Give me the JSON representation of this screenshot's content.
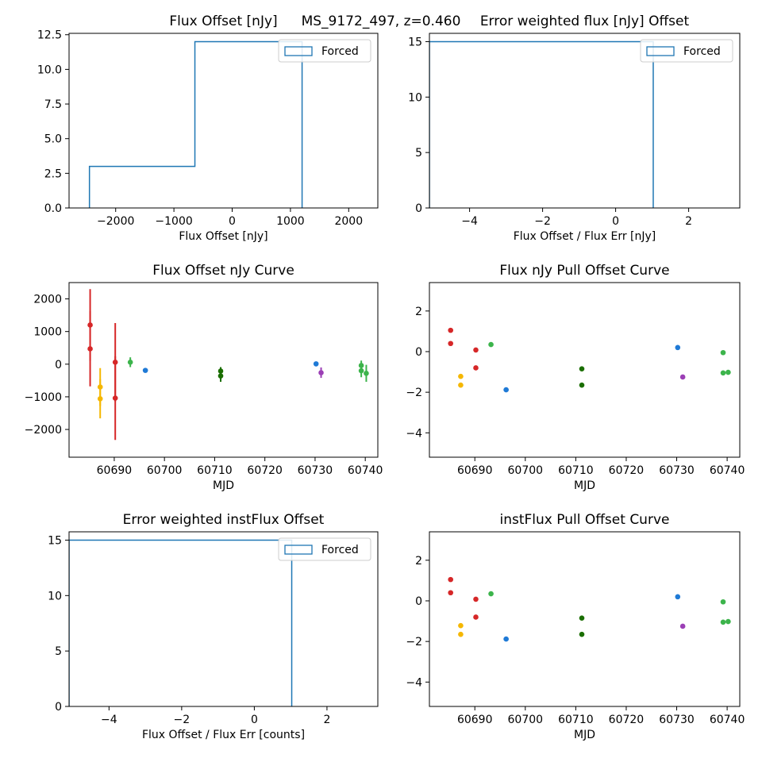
{
  "suptitle": "MS_9172_497, z=0.460",
  "chart_data": [
    {
      "id": "flux_hist",
      "type": "histogram",
      "title": "Flux Offset [nJy]",
      "xlabel": "Flux Offset  [nJy]",
      "ylabel": "",
      "xlim": [
        -2800,
        2500
      ],
      "ylim": [
        0,
        12.6
      ],
      "xticks": [
        -2000,
        -1000,
        0,
        1000,
        2000
      ],
      "xtick_labels": [
        "−2000",
        "−1000",
        "0",
        "1000",
        "2000"
      ],
      "yticks": [
        0,
        2.5,
        5,
        7.5,
        10,
        12.5
      ],
      "ytick_labels": [
        "0.0",
        "2.5",
        "5.0",
        "7.5",
        "10.0",
        "12.5"
      ],
      "bins": [
        [
          -2450,
          -640,
          3
        ],
        [
          -640,
          1200,
          12
        ]
      ],
      "legend": "Forced",
      "legend_position": "upper right",
      "color": "#1f77b4"
    },
    {
      "id": "flux_pull_hist",
      "type": "histogram",
      "title": "Error weighted flux [nJy] Offset",
      "xlabel": "Flux Offset / Flux Err [nJy]",
      "ylabel": "",
      "xlim": [
        -5.1,
        3.4
      ],
      "ylim": [
        0,
        15.75
      ],
      "xticks": [
        -4,
        -2,
        0,
        2
      ],
      "xtick_labels": [
        "−4",
        "−2",
        "0",
        "2"
      ],
      "yticks": [
        0,
        5,
        10,
        15
      ],
      "ytick_labels": [
        "0",
        "5",
        "10",
        "15"
      ],
      "bins": [
        [
          -5.1,
          1.03,
          15
        ]
      ],
      "legend": "Forced",
      "legend_position": "upper right",
      "color": "#1f77b4"
    },
    {
      "id": "flux_curve",
      "type": "scatter",
      "title": "Flux Offset nJy Curve",
      "xlabel": "MJD",
      "ylabel": "",
      "xlim": [
        60681,
        60742.5
      ],
      "ylim": [
        -2850,
        2500
      ],
      "xticks": [
        60690,
        60700,
        60710,
        60720,
        60730,
        60740
      ],
      "xtick_labels": [
        "60690",
        "60700",
        "60710",
        "60720",
        "60730",
        "60740"
      ],
      "yticks": [
        -2000,
        -1000,
        0,
        1000,
        2000
      ],
      "ytick_labels": [
        "−2000",
        "−1000",
        "0",
        "1000",
        "2000"
      ],
      "points": [
        {
          "x": 60685.2,
          "y": 1200,
          "err": 1100,
          "color": "#d62728"
        },
        {
          "x": 60685.2,
          "y": 470,
          "err": 1150,
          "color": "#d62728"
        },
        {
          "x": 60687.2,
          "y": -700,
          "err": 580,
          "color": "#f5b700"
        },
        {
          "x": 60687.2,
          "y": -1060,
          "err": 600,
          "color": "#f5b700"
        },
        {
          "x": 60690.2,
          "y": 60,
          "err": 1200,
          "color": "#d62728"
        },
        {
          "x": 60690.2,
          "y": -1040,
          "err": 1280,
          "color": "#d62728"
        },
        {
          "x": 60693.2,
          "y": 60,
          "err": 150,
          "color": "#3cb44b"
        },
        {
          "x": 60696.2,
          "y": -190,
          "err": 70,
          "color": "#1f7ad6"
        },
        {
          "x": 60711.2,
          "y": -210,
          "err": 120,
          "color": "#1a6e00"
        },
        {
          "x": 60711.2,
          "y": -360,
          "err": 180,
          "color": "#1a6e00"
        },
        {
          "x": 60730.2,
          "y": 10,
          "err": 60,
          "color": "#1f7ad6"
        },
        {
          "x": 60731.2,
          "y": -260,
          "err": 160,
          "color": "#9b3fb5"
        },
        {
          "x": 60739.2,
          "y": -40,
          "err": 150,
          "color": "#3cb44b"
        },
        {
          "x": 60739.2,
          "y": -200,
          "err": 200,
          "color": "#3cb44b"
        },
        {
          "x": 60740.2,
          "y": -280,
          "err": 260,
          "color": "#3cb44b"
        }
      ]
    },
    {
      "id": "flux_pull_curve",
      "type": "scatter",
      "title": "Flux nJy Pull Offset Curve",
      "xlabel": "MJD",
      "ylabel": "",
      "xlim": [
        60681,
        60742.5
      ],
      "ylim": [
        -5.2,
        3.4
      ],
      "xticks": [
        60690,
        60700,
        60710,
        60720,
        60730,
        60740
      ],
      "xtick_labels": [
        "60690",
        "60700",
        "60710",
        "60720",
        "60730",
        "60740"
      ],
      "yticks": [
        -4,
        -2,
        0,
        2
      ],
      "ytick_labels": [
        "−4",
        "−2",
        "0",
        "2"
      ],
      "points": [
        {
          "x": 60685.2,
          "y": 1.05,
          "color": "#d62728"
        },
        {
          "x": 60685.2,
          "y": 0.4,
          "color": "#d62728"
        },
        {
          "x": 60687.2,
          "y": -1.22,
          "color": "#f5b700"
        },
        {
          "x": 60687.2,
          "y": -1.65,
          "color": "#f5b700"
        },
        {
          "x": 60690.2,
          "y": 0.08,
          "color": "#d62728"
        },
        {
          "x": 60690.2,
          "y": -0.8,
          "color": "#d62728"
        },
        {
          "x": 60693.2,
          "y": 0.35,
          "color": "#3cb44b"
        },
        {
          "x": 60696.2,
          "y": -1.88,
          "color": "#1f7ad6"
        },
        {
          "x": 60711.2,
          "y": -0.85,
          "color": "#1a6e00"
        },
        {
          "x": 60711.2,
          "y": -1.65,
          "color": "#1a6e00"
        },
        {
          "x": 60730.2,
          "y": 0.2,
          "color": "#1f7ad6"
        },
        {
          "x": 60731.2,
          "y": -1.25,
          "color": "#9b3fb5"
        },
        {
          "x": 60739.2,
          "y": -0.05,
          "color": "#3cb44b"
        },
        {
          "x": 60739.2,
          "y": -1.05,
          "color": "#3cb44b"
        },
        {
          "x": 60740.2,
          "y": -1.02,
          "color": "#3cb44b"
        }
      ]
    },
    {
      "id": "instflux_pull_hist",
      "type": "histogram",
      "title": "Error weighted instFlux Offset",
      "xlabel": "Flux Offset / Flux Err [counts]",
      "ylabel": "",
      "xlim": [
        -5.1,
        3.4
      ],
      "ylim": [
        0,
        15.75
      ],
      "xticks": [
        -4,
        -2,
        0,
        2
      ],
      "xtick_labels": [
        "−4",
        "−2",
        "0",
        "2"
      ],
      "yticks": [
        0,
        5,
        10,
        15
      ],
      "ytick_labels": [
        "0",
        "5",
        "10",
        "15"
      ],
      "bins": [
        [
          -5.1,
          1.03,
          15
        ]
      ],
      "legend": "Forced",
      "legend_position": "upper right",
      "color": "#1f77b4"
    },
    {
      "id": "instflux_pull_curve",
      "type": "scatter",
      "title": "instFlux Pull Offset Curve",
      "xlabel": "MJD",
      "ylabel": "",
      "xlim": [
        60681,
        60742.5
      ],
      "ylim": [
        -5.2,
        3.4
      ],
      "xticks": [
        60690,
        60700,
        60710,
        60720,
        60730,
        60740
      ],
      "xtick_labels": [
        "60690",
        "60700",
        "60710",
        "60720",
        "60730",
        "60740"
      ],
      "yticks": [
        -4,
        -2,
        0,
        2
      ],
      "ytick_labels": [
        "−4",
        "−2",
        "0",
        "2"
      ],
      "points": [
        {
          "x": 60685.2,
          "y": 1.05,
          "color": "#d62728"
        },
        {
          "x": 60685.2,
          "y": 0.4,
          "color": "#d62728"
        },
        {
          "x": 60687.2,
          "y": -1.22,
          "color": "#f5b700"
        },
        {
          "x": 60687.2,
          "y": -1.65,
          "color": "#f5b700"
        },
        {
          "x": 60690.2,
          "y": 0.08,
          "color": "#d62728"
        },
        {
          "x": 60690.2,
          "y": -0.8,
          "color": "#d62728"
        },
        {
          "x": 60693.2,
          "y": 0.35,
          "color": "#3cb44b"
        },
        {
          "x": 60696.2,
          "y": -1.88,
          "color": "#1f7ad6"
        },
        {
          "x": 60711.2,
          "y": -0.85,
          "color": "#1a6e00"
        },
        {
          "x": 60711.2,
          "y": -1.65,
          "color": "#1a6e00"
        },
        {
          "x": 60730.2,
          "y": 0.2,
          "color": "#1f7ad6"
        },
        {
          "x": 60731.2,
          "y": -1.25,
          "color": "#9b3fb5"
        },
        {
          "x": 60739.2,
          "y": -0.05,
          "color": "#3cb44b"
        },
        {
          "x": 60739.2,
          "y": -1.05,
          "color": "#3cb44b"
        },
        {
          "x": 60740.2,
          "y": -1.02,
          "color": "#3cb44b"
        }
      ]
    }
  ]
}
